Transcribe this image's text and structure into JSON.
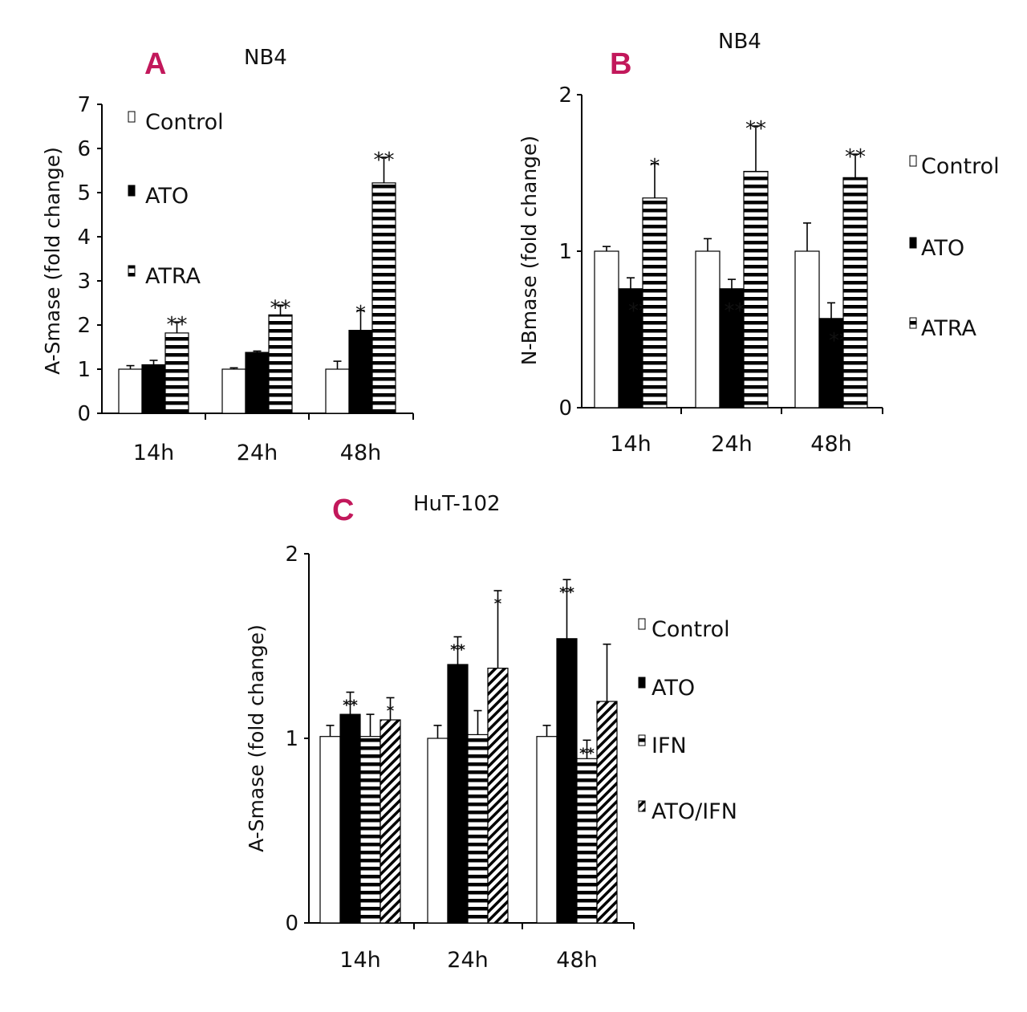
{
  "colors": {
    "accent": "#c2185b",
    "ink": "#111111"
  },
  "chart_data": [
    {
      "id": "A",
      "type": "bar",
      "panel_label": "A",
      "title": "NB4",
      "ylabel": "A-Smase (fold change)",
      "ylim": [
        0,
        7
      ],
      "yticks": [
        "0",
        "1",
        "2",
        "3",
        "4",
        "5",
        "6",
        "7"
      ],
      "categories": [
        "14h",
        "24h",
        "48h"
      ],
      "series": [
        {
          "name": "Control",
          "pattern": "white",
          "values": [
            1.0,
            1.0,
            1.0
          ],
          "errors": [
            0.08,
            0.03,
            0.18
          ],
          "stars": [
            "",
            "",
            ""
          ]
        },
        {
          "name": "ATO",
          "pattern": "black",
          "values": [
            1.1,
            1.38,
            1.88
          ],
          "errors": [
            0.1,
            0.03,
            0.45
          ],
          "stars": [
            "",
            "",
            "*"
          ]
        },
        {
          "name": "ATRA",
          "pattern": "hstripe",
          "values": [
            1.82,
            2.23,
            5.22
          ],
          "errors": [
            0.25,
            0.22,
            0.58
          ],
          "stars": [
            "**",
            "**",
            "**"
          ]
        }
      ]
    },
    {
      "id": "B",
      "type": "bar",
      "panel_label": "B",
      "title": "NB4",
      "ylabel": "N-Bmase (fold change)",
      "ylim": [
        0,
        2
      ],
      "yticks": [
        "0",
        "1",
        "2"
      ],
      "categories": [
        "14h",
        "24h",
        "48h"
      ],
      "series": [
        {
          "name": "Control",
          "pattern": "white",
          "values": [
            1.0,
            1.0,
            1.0
          ],
          "errors": [
            0.03,
            0.08,
            0.18
          ],
          "stars": [
            "",
            "",
            ""
          ]
        },
        {
          "name": "ATO",
          "pattern": "black",
          "values": [
            0.76,
            0.76,
            0.57
          ],
          "errors": [
            0.07,
            0.06,
            0.1
          ],
          "stars": [
            "**",
            "***",
            "**"
          ]
        },
        {
          "name": "ATRA",
          "pattern": "hstripe",
          "values": [
            1.34,
            1.51,
            1.47
          ],
          "errors": [
            0.22,
            0.29,
            0.15
          ],
          "stars": [
            "*",
            "**",
            "**"
          ]
        }
      ]
    },
    {
      "id": "C",
      "type": "bar",
      "panel_label": "C",
      "title": "HuT-102",
      "ylabel": "A-Smase (fold change)",
      "ylim": [
        0,
        2
      ],
      "yticks": [
        "0",
        "1",
        "2"
      ],
      "categories": [
        "14h",
        "24h",
        "48h"
      ],
      "series": [
        {
          "name": "Control",
          "pattern": "white",
          "values": [
            1.01,
            1.0,
            1.01
          ],
          "errors": [
            0.06,
            0.07,
            0.06
          ],
          "stars": [
            "",
            "",
            ""
          ]
        },
        {
          "name": "ATO",
          "pattern": "black",
          "values": [
            1.13,
            1.4,
            1.54
          ],
          "errors": [
            0.12,
            0.15,
            0.32
          ],
          "stars": [
            "**",
            "**",
            "**"
          ]
        },
        {
          "name": "IFN",
          "pattern": "hstripe",
          "values": [
            1.01,
            1.02,
            0.89
          ],
          "errors": [
            0.12,
            0.13,
            0.1
          ],
          "stars": [
            "",
            "",
            "**"
          ]
        },
        {
          "name": "ATO/IFN",
          "pattern": "diag",
          "values": [
            1.1,
            1.38,
            1.2
          ],
          "errors": [
            0.12,
            0.42,
            0.31
          ],
          "stars": [
            "*",
            "*",
            ""
          ]
        }
      ]
    }
  ]
}
